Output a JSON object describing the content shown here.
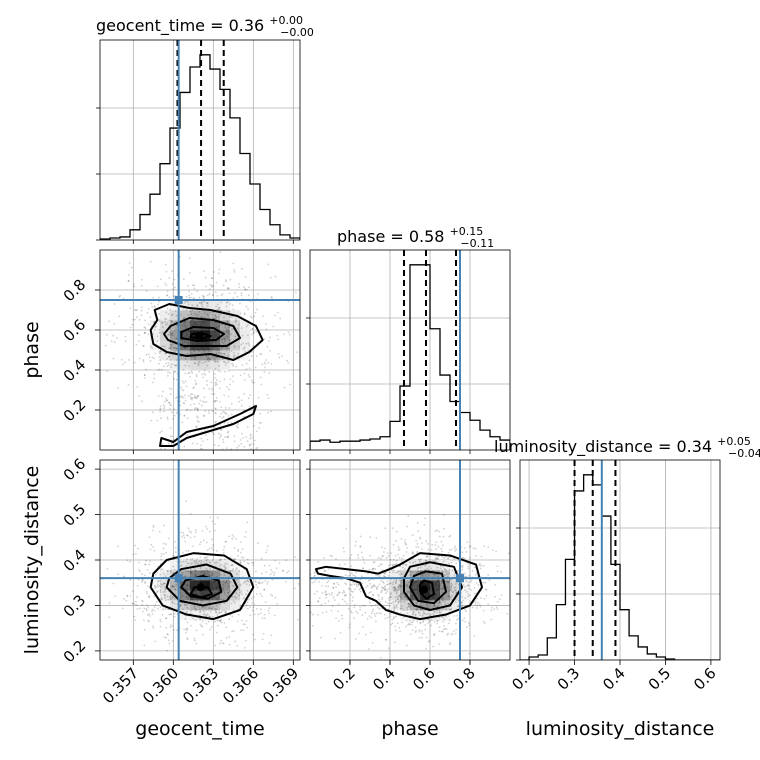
{
  "chart_data": {
    "type": "corner",
    "parameters": [
      "geocent_time",
      "phase",
      "luminosity_distance"
    ],
    "truth": {
      "geocent_time": 0.3604,
      "phase": 0.75,
      "luminosity_distance": 0.36
    },
    "titles": [
      {
        "name": "geocent_time",
        "value": "0.36",
        "plus": "+0.00",
        "minus": "−0.00"
      },
      {
        "name": "phase",
        "value": "0.58",
        "plus": "+0.15",
        "minus": "−0.11"
      },
      {
        "name": "luminosity_distance",
        "value": "0.34",
        "plus": "+0.05",
        "minus": "−0.04"
      }
    ],
    "axes": {
      "geocent_time": {
        "range": [
          0.3545,
          0.3695
        ],
        "ticks": [
          "0.357",
          "0.360",
          "0.363",
          "0.366",
          "0.369"
        ],
        "tick_values": [
          0.357,
          0.36,
          0.363,
          0.366,
          0.369
        ]
      },
      "phase": {
        "range": [
          0.0,
          1.0
        ],
        "ticks": [
          "0.2",
          "0.4",
          "0.6",
          "0.8"
        ],
        "tick_values": [
          0.2,
          0.4,
          0.6,
          0.8
        ]
      },
      "luminosity_distance": {
        "range": [
          0.18,
          0.62
        ],
        "ticks": [
          "0.2",
          "0.3",
          "0.4",
          "0.5",
          "0.6"
        ],
        "tick_values": [
          0.2,
          0.3,
          0.4,
          0.5,
          0.6
        ]
      }
    },
    "marginals": [
      {
        "param": "geocent_time",
        "bin_edges": [
          0.3545,
          0.35525,
          0.356,
          0.35675,
          0.3575,
          0.35825,
          0.359,
          0.35975,
          0.3605,
          0.36125,
          0.362,
          0.36275,
          0.3635,
          0.36425,
          0.365,
          0.36575,
          0.3665,
          0.36725,
          0.368,
          0.36875,
          0.3695
        ],
        "counts": [
          1,
          2,
          3,
          10,
          25,
          45,
          75,
          110,
          145,
          170,
          182,
          168,
          148,
          120,
          85,
          55,
          30,
          15,
          5,
          2
        ],
        "quantiles": [
          0.36031,
          0.36208,
          0.36378
        ]
      },
      {
        "param": "phase",
        "bin_edges": [
          0.0,
          0.05,
          0.1,
          0.15,
          0.2,
          0.25,
          0.3,
          0.35,
          0.4,
          0.45,
          0.5,
          0.55,
          0.6,
          0.65,
          0.7,
          0.75,
          0.8,
          0.85,
          0.9,
          0.95,
          1.0
        ],
        "counts": [
          8,
          9,
          7,
          8,
          8,
          9,
          10,
          12,
          26,
          58,
          168,
          168,
          110,
          68,
          44,
          34,
          27,
          18,
          12,
          9
        ],
        "quantiles": [
          0.47,
          0.58,
          0.73
        ]
      },
      {
        "param": "luminosity_distance",
        "bin_edges": [
          0.18,
          0.2,
          0.22,
          0.24,
          0.26,
          0.28,
          0.3,
          0.32,
          0.34,
          0.36,
          0.38,
          0.4,
          0.42,
          0.44,
          0.46,
          0.48,
          0.5,
          0.52,
          0.54,
          0.56,
          0.58,
          0.6,
          0.62
        ],
        "counts": [
          0,
          3,
          5,
          22,
          55,
          100,
          168,
          184,
          174,
          143,
          95,
          50,
          24,
          13,
          6,
          3,
          1,
          0,
          0,
          0,
          0,
          0
        ],
        "quantiles": [
          0.3,
          0.34,
          0.39
        ]
      }
    ],
    "joint": [
      {
        "x": "geocent_time",
        "y": "phase",
        "density": {
          "cx": 0.36208,
          "cy": 0.57,
          "sx": 0.0017,
          "sy": 0.085
        },
        "contours": [
          [
            [
              0.3585,
              0.53
            ],
            [
              0.3595,
              0.49
            ],
            [
              0.361,
              0.47
            ],
            [
              0.3628,
              0.48
            ],
            [
              0.3645,
              0.45
            ],
            [
              0.3657,
              0.49
            ],
            [
              0.3667,
              0.55
            ],
            [
              0.3662,
              0.62
            ],
            [
              0.3648,
              0.67
            ],
            [
              0.3628,
              0.7
            ],
            [
              0.3612,
              0.71
            ],
            [
              0.3597,
              0.73
            ],
            [
              0.3586,
              0.7
            ],
            [
              0.3588,
              0.65
            ],
            [
              0.3583,
              0.6
            ]
          ],
          [
            [
              0.3596,
              0.55
            ],
            [
              0.3608,
              0.52
            ],
            [
              0.3625,
              0.52
            ],
            [
              0.364,
              0.52
            ],
            [
              0.365,
              0.56
            ],
            [
              0.3645,
              0.62
            ],
            [
              0.363,
              0.65
            ],
            [
              0.3612,
              0.66
            ],
            [
              0.3598,
              0.62
            ],
            [
              0.3593,
              0.58
            ]
          ],
          [
            [
              0.3606,
              0.56
            ],
            [
              0.3618,
              0.545
            ],
            [
              0.3632,
              0.55
            ],
            [
              0.3638,
              0.58
            ],
            [
              0.363,
              0.61
            ],
            [
              0.3615,
              0.615
            ],
            [
              0.3606,
              0.59
            ]
          ],
          [
            [
              0.3613,
              0.565
            ],
            [
              0.3621,
              0.555
            ],
            [
              0.3628,
              0.57
            ],
            [
              0.3621,
              0.585
            ],
            [
              0.3614,
              0.58
            ]
          ],
          [
            [
              0.359,
              0.02
            ],
            [
              0.3591,
              0.06
            ],
            [
              0.36,
              0.04
            ],
            [
              0.361,
              0.09
            ],
            [
              0.363,
              0.12
            ],
            [
              0.365,
              0.18
            ],
            [
              0.3662,
              0.22
            ],
            [
              0.366,
              0.18
            ],
            [
              0.3645,
              0.13
            ],
            [
              0.3625,
              0.09
            ],
            [
              0.361,
              0.06
            ],
            [
              0.36,
              0.02
            ]
          ]
        ]
      },
      {
        "x": "geocent_time",
        "y": "luminosity_distance",
        "density": {
          "cx": 0.3622,
          "cy": 0.34,
          "sx": 0.0016,
          "sy": 0.03
        },
        "contours": [
          [
            [
              0.3583,
              0.34
            ],
            [
              0.3592,
              0.3
            ],
            [
              0.361,
              0.28
            ],
            [
              0.363,
              0.27
            ],
            [
              0.365,
              0.29
            ],
            [
              0.366,
              0.34
            ],
            [
              0.3655,
              0.38
            ],
            [
              0.3638,
              0.41
            ],
            [
              0.3615,
              0.415
            ],
            [
              0.3595,
              0.4
            ],
            [
              0.3585,
              0.37
            ]
          ],
          [
            [
              0.3595,
              0.34
            ],
            [
              0.3605,
              0.31
            ],
            [
              0.3622,
              0.3
            ],
            [
              0.364,
              0.31
            ],
            [
              0.3648,
              0.34
            ],
            [
              0.3643,
              0.37
            ],
            [
              0.3625,
              0.39
            ],
            [
              0.3606,
              0.38
            ],
            [
              0.3597,
              0.36
            ]
          ],
          [
            [
              0.3606,
              0.34
            ],
            [
              0.3613,
              0.32
            ],
            [
              0.3626,
              0.315
            ],
            [
              0.3636,
              0.33
            ],
            [
              0.3634,
              0.355
            ],
            [
              0.3622,
              0.365
            ],
            [
              0.3609,
              0.355
            ]
          ],
          [
            [
              0.3613,
              0.325
            ],
            [
              0.3621,
              0.318
            ],
            [
              0.3629,
              0.325
            ],
            [
              0.3626,
              0.34
            ],
            [
              0.3616,
              0.34
            ]
          ]
        ]
      },
      {
        "x": "phase",
        "y": "luminosity_distance",
        "density": {
          "cx": 0.58,
          "cy": 0.335,
          "sx": 0.09,
          "sy": 0.03
        },
        "contours": [
          [
            [
              0.04,
              0.37
            ],
            [
              0.1,
              0.365
            ],
            [
              0.18,
              0.36
            ],
            [
              0.25,
              0.35
            ],
            [
              0.28,
              0.32
            ],
            [
              0.33,
              0.31
            ],
            [
              0.38,
              0.29
            ],
            [
              0.45,
              0.28
            ],
            [
              0.55,
              0.27
            ],
            [
              0.68,
              0.28
            ],
            [
              0.8,
              0.3
            ],
            [
              0.86,
              0.34
            ],
            [
              0.83,
              0.39
            ],
            [
              0.7,
              0.41
            ],
            [
              0.55,
              0.415
            ],
            [
              0.45,
              0.39
            ],
            [
              0.4,
              0.38
            ],
            [
              0.34,
              0.37
            ],
            [
              0.28,
              0.375
            ],
            [
              0.18,
              0.38
            ],
            [
              0.08,
              0.385
            ],
            [
              0.03,
              0.38
            ]
          ],
          [
            [
              0.47,
              0.33
            ],
            [
              0.52,
              0.3
            ],
            [
              0.6,
              0.29
            ],
            [
              0.7,
              0.3
            ],
            [
              0.76,
              0.34
            ],
            [
              0.72,
              0.385
            ],
            [
              0.6,
              0.395
            ],
            [
              0.5,
              0.385
            ],
            [
              0.47,
              0.36
            ]
          ],
          [
            [
              0.5,
              0.34
            ],
            [
              0.54,
              0.31
            ],
            [
              0.62,
              0.305
            ],
            [
              0.68,
              0.33
            ],
            [
              0.66,
              0.37
            ],
            [
              0.58,
              0.375
            ],
            [
              0.52,
              0.365
            ]
          ],
          [
            [
              0.55,
              0.33
            ],
            [
              0.58,
              0.315
            ],
            [
              0.62,
              0.325
            ],
            [
              0.61,
              0.35
            ],
            [
              0.57,
              0.355
            ],
            [
              0.55,
              0.345
            ]
          ]
        ]
      }
    ]
  }
}
